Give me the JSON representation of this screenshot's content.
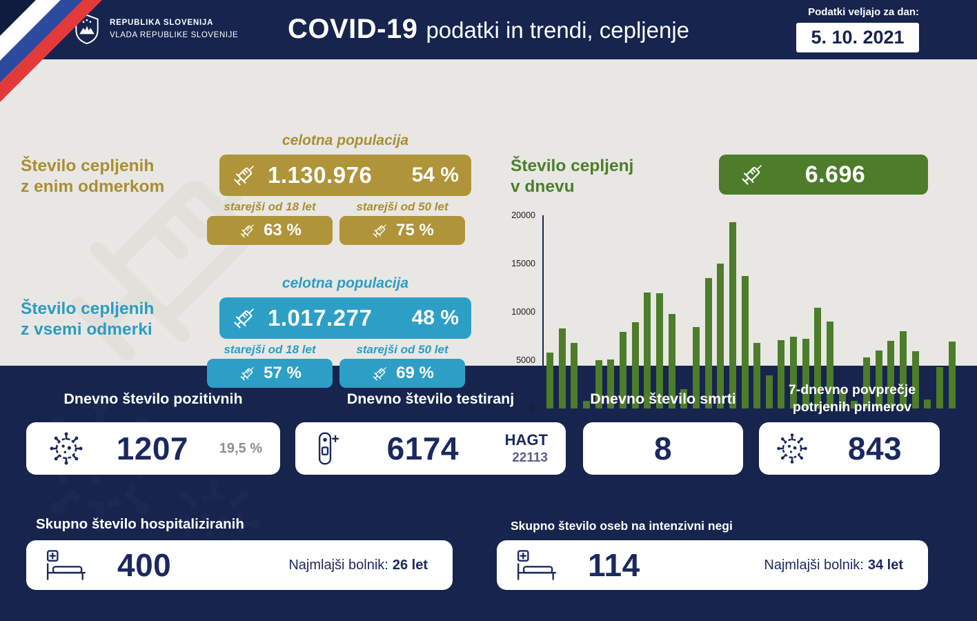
{
  "header": {
    "gov_line1": "REPUBLIKA SLOVENIJA",
    "gov_line2": "VLADA REPUBLIKE SLOVENIJE",
    "title_bold": "COVID-19",
    "title_rest": "podatki in trendi, cepljenje",
    "date_label": "Podatki veljajo za dan:",
    "date_value": "5. 10. 2021"
  },
  "vaccination_first": {
    "label_line1": "Število cepljenih",
    "label_line2": "z enim odmerkom",
    "population_label": "celotna populacija",
    "total": "1.130.976",
    "percent": "54 %",
    "over18_label": "starejši od 18 let",
    "over18_percent": "63 %",
    "over50_label": "starejši od 50 let",
    "over50_percent": "75 %"
  },
  "vaccination_full": {
    "label_line1": "Število cepljenih",
    "label_line2": "z vsemi odmerki",
    "population_label": "celotna populacija",
    "total": "1.017.277",
    "percent": "48 %",
    "over18_label": "starejši od 18 let",
    "over18_percent": "57 %",
    "over50_label": "starejši od 50 let",
    "over50_percent": "69 %"
  },
  "daily_vacc": {
    "label_line1": "Število cepljenj",
    "label_line2": "v dnevu",
    "value": "6.696"
  },
  "chart_data": {
    "type": "bar",
    "title": "Število cepljenj v dnevu",
    "ylim": [
      0,
      20000
    ],
    "yticks": [
      0,
      5000,
      10000,
      15000,
      20000
    ],
    "values": [
      5800,
      8300,
      6800,
      800,
      5000,
      5100,
      7900,
      8900,
      12000,
      11900,
      9800,
      2000,
      8400,
      13500,
      15000,
      19300,
      13700,
      6800,
      3400,
      7100,
      7400,
      7200,
      10400,
      9000,
      1900,
      800,
      5300,
      6000,
      7000,
      8000,
      5900,
      900,
      4300,
      6900
    ],
    "bar_color": "#4d7c2a",
    "grid": false,
    "legend": false
  },
  "bottom": {
    "positives": {
      "title": "Dnevno število pozitivnih",
      "value": "1207",
      "percent": "19,5 %"
    },
    "tests": {
      "title": "Dnevno število testiranj",
      "value": "6174",
      "hagt_label": "HAGT",
      "hagt_value": "22113"
    },
    "deaths": {
      "title": "Dnevno število smrti",
      "value": "8"
    },
    "avg7": {
      "title_line1": "7-dnevno povprečje",
      "title_line2": "potrjenih primerov",
      "value": "843"
    },
    "hospitalized": {
      "title": "Skupno število hospitaliziranih",
      "value": "400",
      "youngest_label": "Najmlajši bolnik:",
      "youngest_value": "26 let"
    },
    "icu": {
      "title": "Skupno število oseb na intenzivni negi",
      "value": "114",
      "youngest_label": "Najmlajši bolnik:",
      "youngest_value": "34 let"
    }
  },
  "colors": {
    "navy": "#16244e",
    "gold": "#b09439",
    "blue": "#2d9fc6",
    "green": "#4d7c2a",
    "background": "#e8e7e3",
    "flag_blue": "#2d4b9e",
    "flag_red": "#e23a3a"
  }
}
